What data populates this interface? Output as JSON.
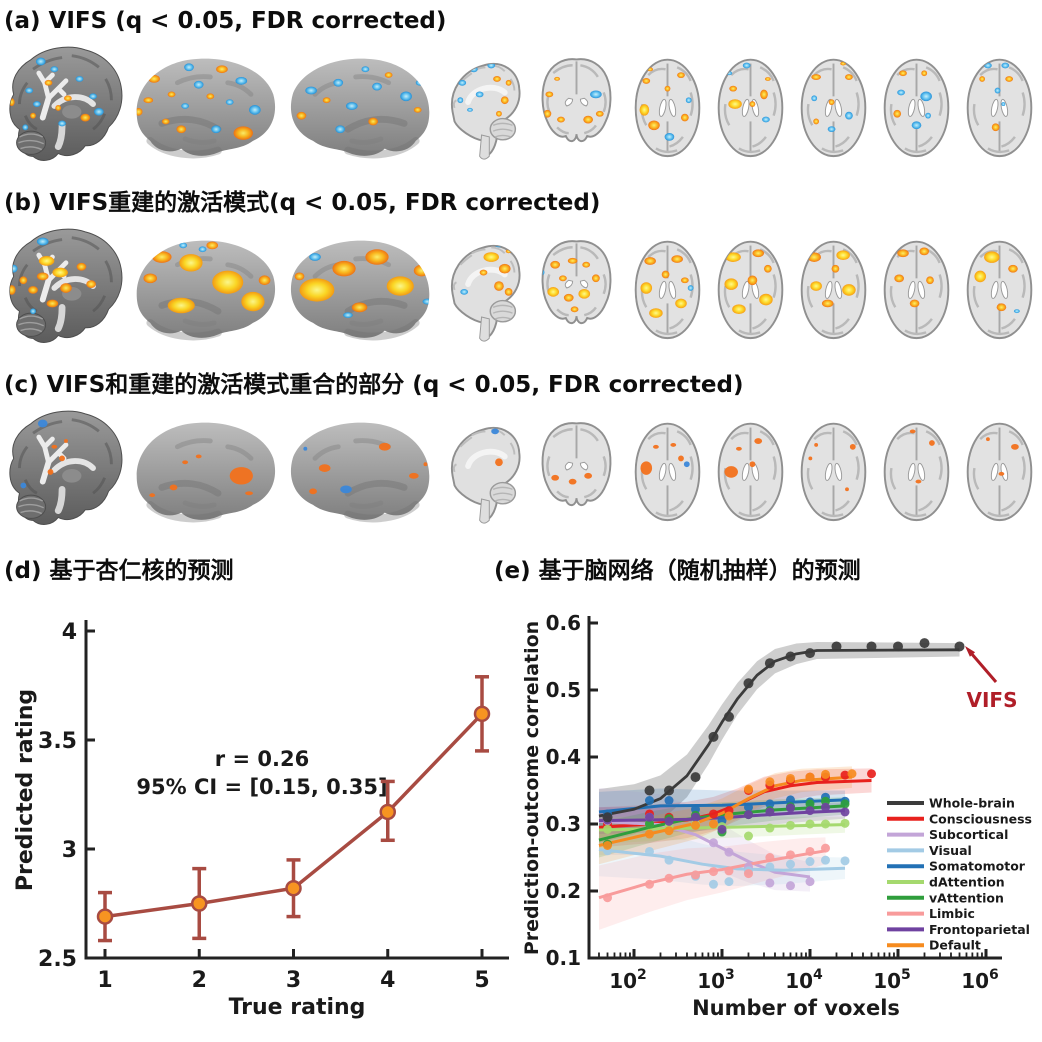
{
  "figure": {
    "panels": {
      "a": {
        "title": "(a) VIFS (q < 0.05, FDR corrected)"
      },
      "b": {
        "title": "(b) VIFS重建的激活模式(q < 0.05, FDR corrected)"
      },
      "c": {
        "title": "(c) VIFS和重建的激活模式重合的部分 (q < 0.05, FDR corrected)"
      },
      "d": {
        "title": "(d) 基于杏仁核的预测"
      },
      "e": {
        "title": "(e) 基于脑网络（随机抽样）的预测"
      }
    },
    "brain_rows": {
      "a": {
        "images": [
          "sagittal-3d-render",
          "inflated-surface-left",
          "inflated-surface-right",
          "sagittal-slice",
          "coronal-slice",
          "axial-slice-1",
          "axial-slice-2",
          "axial-slice-3",
          "axial-slice-4",
          "axial-slice-5"
        ]
      },
      "b": {
        "images": [
          "sagittal-3d-render",
          "inflated-surface-left",
          "inflated-surface-right",
          "sagittal-slice",
          "coronal-slice",
          "axial-slice-1",
          "axial-slice-2",
          "axial-slice-3",
          "axial-slice-4",
          "axial-slice-5"
        ]
      },
      "c": {
        "images": [
          "sagittal-3d-render",
          "inflated-surface-left",
          "inflated-surface-right",
          "sagittal-slice",
          "coronal-slice",
          "axial-slice-1",
          "axial-slice-2",
          "axial-slice-3",
          "axial-slice-4",
          "axial-slice-5"
        ]
      }
    },
    "colors": {
      "activation_hot": "#f9a00e",
      "activation_hot_bright": "#ffe14d",
      "activation_cool": "#2f9ae0",
      "overlap_orange": "#f2711c",
      "overlap_blue": "#3b87d9",
      "annotation_red": "#b01e28"
    }
  },
  "chart_data": [
    {
      "panel": "d",
      "type": "line",
      "title": "(d) 基于杏仁核的预测",
      "xlabel": "True rating",
      "ylabel": "Predicted rating",
      "x": [
        1,
        2,
        3,
        4,
        5
      ],
      "y": [
        2.69,
        2.75,
        2.82,
        3.17,
        3.62
      ],
      "err_low": [
        2.58,
        2.59,
        2.69,
        3.04,
        3.45
      ],
      "err_high": [
        2.8,
        2.91,
        2.95,
        3.31,
        3.79
      ],
      "annotation_line1": "r = 0.26",
      "annotation_line2": "95% CI = [0.15, 0.35]",
      "xlim": [
        0.8,
        5.3
      ],
      "ylim": [
        2.5,
        4
      ],
      "xticks": [
        1,
        2,
        3,
        4,
        5
      ],
      "yticks": [
        "2.5",
        "3",
        "3.5",
        "4"
      ],
      "grid": false,
      "line_color": "#a84b42",
      "marker_color": "#f79421"
    },
    {
      "panel": "e",
      "type": "line",
      "title": "(e) 基于脑网络（随机抽样）的预测",
      "xlabel": "Number of voxels",
      "ylabel": "Prediction-outcome correlation",
      "xscale": "log",
      "xlim": [
        33,
        1000000
      ],
      "ylim": [
        0.1,
        0.6
      ],
      "xtick_exponents": [
        2,
        3,
        4,
        5,
        6
      ],
      "yticks": [
        0.1,
        0.2,
        0.3,
        0.4,
        0.5,
        0.6
      ],
      "grid": false,
      "legend_position": "right",
      "annotation": {
        "text": "VIFS",
        "color": "#b01e28"
      },
      "series": [
        {
          "name": "Whole-brain",
          "color": "#3b3b3b",
          "band": [
            0.04,
            0.01
          ],
          "x": [
            50,
            150,
            250,
            500,
            800,
            1200,
            2000,
            3500,
            6000,
            10000,
            20000,
            50000,
            100000,
            200000,
            500000
          ],
          "y": [
            0.31,
            0.35,
            0.35,
            0.37,
            0.43,
            0.46,
            0.51,
            0.54,
            0.55,
            0.555,
            0.565,
            0.565,
            0.565,
            0.57,
            0.565
          ],
          "trend": [
            [
              40,
              0.312
            ],
            [
              100,
              0.322
            ],
            [
              200,
              0.338
            ],
            [
              400,
              0.372
            ],
            [
              700,
              0.418
            ],
            [
              1000,
              0.452
            ],
            [
              1500,
              0.487
            ],
            [
              2500,
              0.522
            ],
            [
              4000,
              0.543
            ],
            [
              7000,
              0.554
            ],
            [
              12000,
              0.559
            ],
            [
              500000,
              0.56
            ]
          ]
        },
        {
          "name": "Consciousness",
          "color": "#e8211d",
          "band": [
            0.03,
            0.018
          ],
          "x": [
            50,
            150,
            250,
            500,
            800,
            1200,
            2000,
            3500,
            6000,
            10000,
            15000,
            25000,
            50000
          ],
          "y": [
            0.3,
            0.315,
            0.31,
            0.3,
            0.315,
            0.32,
            0.35,
            0.358,
            0.365,
            0.37,
            0.37,
            0.373,
            0.375
          ],
          "trend": [
            [
              40,
              0.295
            ],
            [
              150,
              0.3
            ],
            [
              400,
              0.306
            ],
            [
              800,
              0.315
            ],
            [
              1500,
              0.329
            ],
            [
              3000,
              0.348
            ],
            [
              6000,
              0.357
            ],
            [
              12000,
              0.362
            ],
            [
              50000,
              0.365
            ]
          ]
        },
        {
          "name": "Subcortical",
          "color": "#c3a5d8",
          "band": [
            0.05,
            0.022
          ],
          "x": [
            50,
            150,
            250,
            500,
            800,
            1200,
            2000,
            3500,
            6000,
            10000
          ],
          "y": [
            0.305,
            0.31,
            0.335,
            0.3,
            0.272,
            0.258,
            0.236,
            0.212,
            0.208,
            0.214
          ],
          "trend": [
            [
              40,
              0.304
            ],
            [
              200,
              0.299
            ],
            [
              500,
              0.284
            ],
            [
              1000,
              0.264
            ],
            [
              2000,
              0.244
            ],
            [
              4000,
              0.228
            ],
            [
              10000,
              0.221
            ]
          ]
        },
        {
          "name": "Visual",
          "color": "#a3cbe5",
          "band": [
            0.04,
            0.016
          ],
          "x": [
            50,
            150,
            250,
            500,
            800,
            1200,
            2000,
            3500,
            6000,
            10000,
            15000,
            25000
          ],
          "y": [
            0.26,
            0.259,
            0.246,
            0.222,
            0.21,
            0.214,
            0.23,
            0.236,
            0.24,
            0.244,
            0.246,
            0.245
          ],
          "trend": [
            [
              40,
              0.262
            ],
            [
              200,
              0.252
            ],
            [
              600,
              0.24
            ],
            [
              1500,
              0.233
            ],
            [
              5000,
              0.231
            ],
            [
              25000,
              0.234
            ]
          ]
        },
        {
          "name": "Somatomotor",
          "color": "#2271b5",
          "band": [
            0.03,
            0.014
          ],
          "x": [
            50,
            150,
            250,
            500,
            1000,
            2000,
            3500,
            6000,
            10000,
            15000,
            25000
          ],
          "y": [
            0.315,
            0.335,
            0.335,
            0.322,
            0.305,
            0.325,
            0.33,
            0.336,
            0.333,
            0.34,
            0.334
          ],
          "trend": [
            [
              40,
              0.318
            ],
            [
              200,
              0.327
            ],
            [
              1000,
              0.328
            ],
            [
              5000,
              0.332
            ],
            [
              25000,
              0.336
            ]
          ]
        },
        {
          "name": "dAttention",
          "color": "#a5d96e",
          "band": [
            0.02,
            0.012
          ],
          "x": [
            50,
            150,
            250,
            500,
            1000,
            2000,
            3500,
            6000,
            10000,
            15000,
            25000
          ],
          "y": [
            0.292,
            0.3,
            0.296,
            0.3,
            0.296,
            0.282,
            0.294,
            0.298,
            0.3,
            0.3,
            0.301
          ],
          "trend": [
            [
              40,
              0.291
            ],
            [
              1000,
              0.295
            ],
            [
              25000,
              0.299
            ]
          ]
        },
        {
          "name": "vAttention",
          "color": "#2f9e3c",
          "band": [
            0.026,
            0.013
          ],
          "x": [
            50,
            150,
            250,
            500,
            1000,
            2000,
            3500,
            6000,
            10000,
            15000,
            25000
          ],
          "y": [
            0.27,
            0.3,
            0.308,
            0.313,
            0.288,
            0.314,
            0.32,
            0.326,
            0.33,
            0.334,
            0.33
          ],
          "trend": [
            [
              40,
              0.276
            ],
            [
              150,
              0.295
            ],
            [
              400,
              0.307
            ],
            [
              1000,
              0.314
            ],
            [
              4000,
              0.321
            ],
            [
              25000,
              0.327
            ]
          ]
        },
        {
          "name": "Limbic",
          "color": "#f89b9b",
          "band": [
            0.048,
            0.02
          ],
          "x": [
            50,
            150,
            250,
            500,
            800,
            1200,
            2000,
            3500,
            6000,
            10000,
            15000
          ],
          "y": [
            0.19,
            0.21,
            0.219,
            0.224,
            0.229,
            0.23,
            0.226,
            0.25,
            0.254,
            0.259,
            0.264
          ],
          "trend": [
            [
              40,
              0.19
            ],
            [
              150,
              0.212
            ],
            [
              400,
              0.225
            ],
            [
              1000,
              0.232
            ],
            [
              3000,
              0.244
            ],
            [
              8000,
              0.254
            ],
            [
              15000,
              0.26
            ]
          ]
        },
        {
          "name": "Frontoparietal",
          "color": "#6f42a0",
          "band": [
            0.02,
            0.012
          ],
          "x": [
            50,
            150,
            250,
            500,
            1000,
            2000,
            3500,
            6000,
            10000,
            15000,
            25000
          ],
          "y": [
            0.306,
            0.31,
            0.304,
            0.31,
            0.292,
            0.314,
            0.318,
            0.324,
            0.32,
            0.325,
            0.318
          ],
          "trend": [
            [
              40,
              0.305
            ],
            [
              500,
              0.307
            ],
            [
              2000,
              0.312
            ],
            [
              8000,
              0.317
            ],
            [
              25000,
              0.32
            ]
          ]
        },
        {
          "name": "Default",
          "color": "#f68b1f",
          "band": [
            0.028,
            0.016
          ],
          "x": [
            50,
            150,
            250,
            500,
            800,
            1200,
            2000,
            3500,
            6000,
            10000,
            15000,
            30000
          ],
          "y": [
            0.268,
            0.285,
            0.29,
            0.298,
            0.3,
            0.312,
            0.352,
            0.363,
            0.368,
            0.37,
            0.374,
            0.375
          ],
          "trend": [
            [
              40,
              0.268
            ],
            [
              100,
              0.28
            ],
            [
              250,
              0.292
            ],
            [
              500,
              0.301
            ],
            [
              1000,
              0.316
            ],
            [
              2000,
              0.338
            ],
            [
              4000,
              0.357
            ],
            [
              8000,
              0.365
            ],
            [
              30000,
              0.37
            ]
          ]
        }
      ]
    }
  ]
}
